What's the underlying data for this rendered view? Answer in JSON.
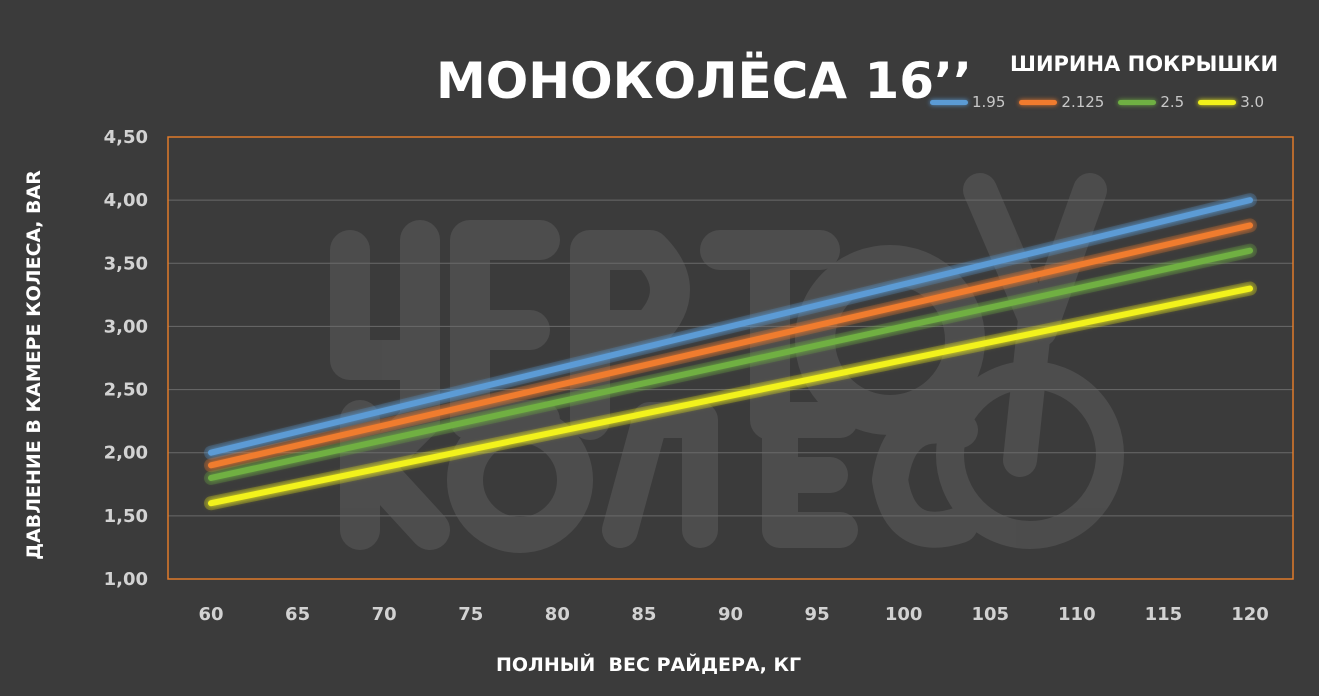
{
  "chart_data": {
    "type": "line",
    "title": "МОНОКОЛЁСА 16’’",
    "xlabel": "ПОЛНЫЙ  ВЕС РАЙДЕРА, КГ",
    "ylabel": "ДАВЛЕНИЕ В КАМЕРЕ КОЛЕСА, BAR",
    "legend_title": "ШИРИНА ПОКРЫШКИ",
    "legend_placement": "top-right",
    "x": [
      60,
      65,
      70,
      75,
      80,
      85,
      90,
      95,
      100,
      105,
      110,
      115,
      120
    ],
    "x_tick_labels": [
      "60",
      "65",
      "70",
      "75",
      "80",
      "85",
      "90",
      "95",
      "100",
      "105",
      "110",
      "115",
      "120"
    ],
    "y_tick_labels": [
      "1,00",
      "1,50",
      "2,00",
      "2,50",
      "3,00",
      "3,50",
      "4,00",
      "4,50"
    ],
    "y_ticks": [
      1.0,
      1.5,
      2.0,
      2.5,
      3.0,
      3.5,
      4.0,
      4.5
    ],
    "ylim": [
      1.0,
      4.5
    ],
    "grid": true,
    "series": [
      {
        "name": "1.95",
        "color": "#5b9bd5",
        "x": [
          60,
          120
        ],
        "y": [
          2.0,
          4.0
        ]
      },
      {
        "name": "2.125",
        "color": "#f07b2e",
        "x": [
          60,
          120
        ],
        "y": [
          1.9,
          3.8
        ]
      },
      {
        "name": "2.5",
        "color": "#6fb043",
        "x": [
          60,
          120
        ],
        "y": [
          1.8,
          3.6
        ]
      },
      {
        "name": "3.0",
        "color": "#f2f21a",
        "x": [
          60,
          120
        ],
        "y": [
          1.6,
          3.3
        ]
      }
    ],
    "colors": {
      "background": "#3b3b3b",
      "plot_border": "#e07b2a",
      "grid": "#6a6a6a"
    }
  }
}
